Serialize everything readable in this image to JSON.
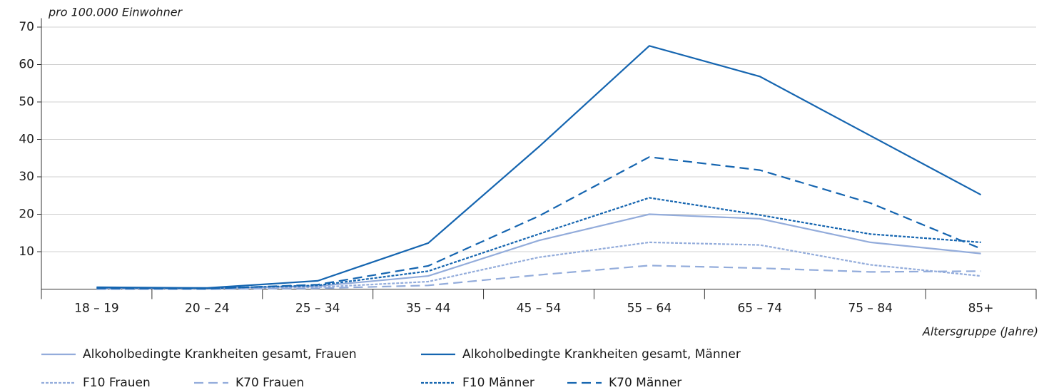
{
  "chart_data": {
    "type": "line",
    "y_label": "pro 100.000 Einwohner",
    "x_label": "Altersgruppe (Jahre)",
    "categories": [
      "18 – 19",
      "20 – 24",
      "25 – 34",
      "35 – 44",
      "45 – 54",
      "55 – 64",
      "65 – 74",
      "75 – 84",
      "85+"
    ],
    "series": [
      {
        "name": "Alkoholbedingte Krankheiten gesamt, Frauen",
        "color": "#93acdb",
        "style": "solid",
        "values": [
          0.3,
          0.2,
          0.8,
          3.5,
          13,
          20,
          18.8,
          12.5,
          9.5
        ]
      },
      {
        "name": "Alkoholbedingte Krankheiten gesamt, Männer",
        "color": "#1565b0",
        "style": "solid",
        "values": [
          0.5,
          0.3,
          2.2,
          12.3,
          38,
          65,
          56.8,
          41,
          25.2
        ]
      },
      {
        "name": "F10 Frauen",
        "color": "#93acdb",
        "style": "dotted",
        "values": [
          0.1,
          0.1,
          0.5,
          2,
          8.5,
          12.5,
          11.8,
          6.5,
          3.5
        ]
      },
      {
        "name": "K70 Frauen",
        "color": "#93acdb",
        "style": "dashed",
        "values": [
          0,
          0,
          0.2,
          1,
          3.8,
          6.3,
          5.6,
          4.6,
          4.8
        ]
      },
      {
        "name": "F10 Männer",
        "color": "#1565b0",
        "style": "dotted",
        "values": [
          0.4,
          0.2,
          1,
          4.8,
          14.7,
          24.4,
          19.8,
          14.7,
          12.5
        ]
      },
      {
        "name": "K70 Männer",
        "color": "#1565b0",
        "style": "dashed",
        "values": [
          0.2,
          0.1,
          1.2,
          6.2,
          19.5,
          35.3,
          31.8,
          23,
          10.8
        ]
      }
    ],
    "ylim": [
      0,
      72
    ],
    "yticks": [
      10,
      20,
      30,
      40,
      50,
      60,
      70
    ],
    "grid": true
  }
}
